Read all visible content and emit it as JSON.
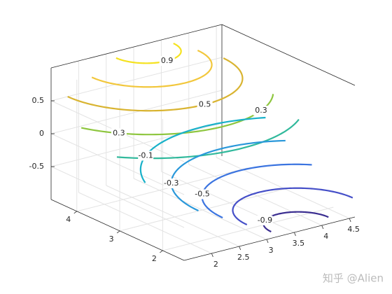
{
  "chart_data": {
    "type": "contour3",
    "xlim": [
      1.5,
      4.6
    ],
    "xticks": [
      2,
      2.5,
      3,
      3.5,
      4,
      4.5
    ],
    "ylim": [
      1.5,
      4.6
    ],
    "yticks": [
      2,
      3,
      4
    ],
    "zlim": [
      -1,
      1
    ],
    "zticks": [
      -0.5,
      0,
      0.5
    ],
    "grid": true,
    "contours": [
      {
        "level": 0.9,
        "color": "#f5e21f",
        "labeled": true
      },
      {
        "level": 0.7,
        "color": "#f2c73c",
        "labeled": false
      },
      {
        "level": 0.5,
        "color": "#d9b431",
        "labeled": true
      },
      {
        "level": 0.3,
        "color": "#8ec63f",
        "labeled": true
      },
      {
        "level": 0.1,
        "color": "#31b99c",
        "labeled": false
      },
      {
        "level": -0.1,
        "color": "#18b1c9",
        "labeled": true
      },
      {
        "level": -0.3,
        "color": "#2a98da",
        "labeled": true
      },
      {
        "level": -0.5,
        "color": "#3b74e0",
        "labeled": true
      },
      {
        "level": -0.7,
        "color": "#454fc8",
        "labeled": false
      },
      {
        "level": -0.9,
        "color": "#3a2d90",
        "labeled": true
      }
    ],
    "watermark": "知乎 @Alien"
  }
}
